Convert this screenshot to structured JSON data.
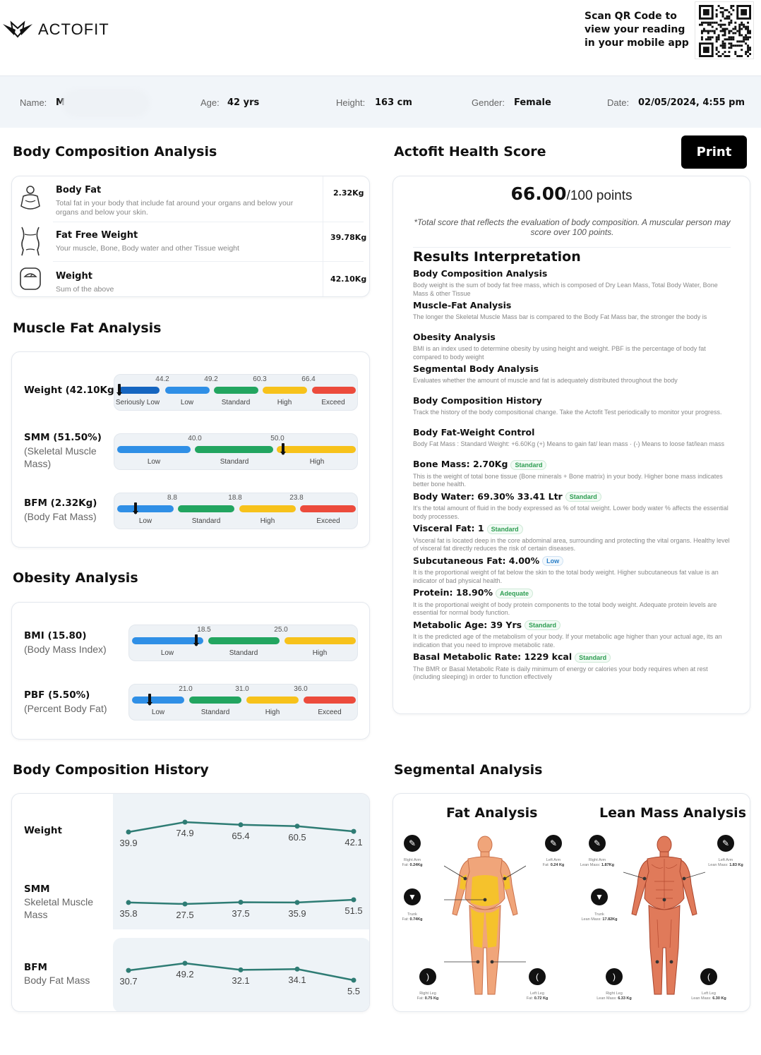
{
  "header": {
    "brand": "ACTOFIT",
    "scan_text": "Scan QR Code to view your reading in your mobile app"
  },
  "info": {
    "name_label": "Name:",
    "name_value": "M",
    "age_label": "Age:",
    "age_value": "42 yrs",
    "height_label": "Height:",
    "height_value": "163 cm",
    "gender_label": "Gender:",
    "gender_value": "Female",
    "date_label": "Date:",
    "date_value": "02/05/2024, 4:55 pm"
  },
  "body_comp": {
    "title": "Body Composition Analysis",
    "rows": [
      {
        "title": "Body Fat",
        "desc": "Total fat in your body that include fat around your organs and below your organs and below your skin.",
        "value": "2.32Kg",
        "icon": "body-fat-icon"
      },
      {
        "title": "Fat Free Weight",
        "desc": "Your muscle, Bone, Body water and other Tissue weight",
        "value": "39.78Kg",
        "icon": "fat-free-body-icon"
      },
      {
        "title": "Weight",
        "desc": "Sum of the above",
        "value": "42.10Kg",
        "icon": "scale-icon"
      }
    ]
  },
  "muscle_fat": {
    "title": "Muscle Fat Analysis",
    "rows": [
      {
        "label": "Weight (42.10Kg)",
        "sub": "",
        "ticks": [
          "44.2",
          "49.2",
          "60.3",
          "66.4"
        ],
        "zones": [
          "Seriously Low",
          "Low",
          "Standard",
          "High",
          "Exceed"
        ]
      },
      {
        "label": "SMM (51.50%)",
        "sub": "(Skeletal Muscle Mass)",
        "ticks": [
          "40.0",
          "50.0"
        ],
        "zones": [
          "Low",
          "Standard",
          "High"
        ]
      },
      {
        "label": "BFM (2.32Kg)",
        "sub": "(Body Fat Mass)",
        "ticks": [
          "8.8",
          "18.8",
          "23.8"
        ],
        "zones": [
          "Low",
          "Standard",
          "High",
          "Exceed"
        ]
      }
    ]
  },
  "obesity": {
    "title": "Obesity Analysis",
    "rows": [
      {
        "label": "BMI (15.80)",
        "sub": "(Body Mass Index)",
        "ticks": [
          "18.5",
          "25.0"
        ],
        "zones": [
          "Low",
          "Standard",
          "High"
        ]
      },
      {
        "label": "PBF (5.50%)",
        "sub": "(Percent Body Fat)",
        "ticks": [
          "21.0",
          "31.0",
          "36.0"
        ],
        "zones": [
          "Low",
          "Standard",
          "High",
          "Exceed"
        ]
      }
    ]
  },
  "health": {
    "title": "Actofit Health Score",
    "print_label": "Print",
    "score": "66.00",
    "score_suffix": "/100 points",
    "note": "*Total score that reflects the evaluation of body composition. A muscular person may score over 100 points.",
    "results_title": "Results Interpretation",
    "items": [
      {
        "title": "Body Composition Analysis",
        "badge": "",
        "desc": "Body weight is the sum of body fat free mass, which is composed of Dry Lean Mass, Total Body Water, Bone Mass & other Tissue"
      },
      {
        "title": "Muscle-Fat Analysis",
        "badge": "",
        "desc": "The longer the Skeletal Muscle Mass bar is compared to the Body Fat Mass bar, the stronger the body is"
      },
      {
        "title": "Obesity Analysis",
        "badge": "",
        "desc": "BMI is an index used to determine obesity by using height and weight. PBF is the percentage of body fat compared to body weight"
      },
      {
        "title": "Segmental Body Analysis",
        "badge": "",
        "desc": "Evaluates whether the amount of muscle and fat is adequately distributed throughout the body"
      },
      {
        "title": "Body Composition History",
        "badge": "",
        "desc": "Track the history of the body compositional change. Take the Actofit Test periodically to monitor your progress."
      },
      {
        "title": "Body Fat-Weight Control",
        "badge": "",
        "desc": "Body Fat Mass : Standard Weight: +6.60Kg (+) Means to gain fat/ lean mass · (-) Means to loose fat/lean mass"
      },
      {
        "title": "Bone Mass: 2.70Kg",
        "badge": "Standard",
        "desc": "This is the weight of total bone tissue (Bone minerals + Bone matrix) in your body. Higher bone mass indicates better bone health."
      },
      {
        "title": "Body Water: 69.30% 33.41 Ltr",
        "badge": "Standard",
        "desc": "It's the total amount of fluid in the body expressed as % of total weight. Lower body water % affects the essential body processes."
      },
      {
        "title": "Visceral Fat: 1",
        "badge": "Standard",
        "desc": "Visceral fat is located deep in the core abdominal area, surrounding and protecting the vital organs. Healthy level of visceral fat directly reduces the risk of certain diseases."
      },
      {
        "title": "Subcutaneous Fat: 4.00%",
        "badge": "Low",
        "desc": "It is the proportional weight of fat below the skin to the total body weight. Higher subcutaneous fat value is an indicator of bad physical health."
      },
      {
        "title": "Protein: 18.90%",
        "badge": "Adequate",
        "desc": "It is the proportional weight of body protein components to the total body weight. Adequate protein levels are essential for normal body function."
      },
      {
        "title": "Metabolic Age: 39 Yrs",
        "badge": "Standard",
        "desc": "It is the predicted age of the metabolism of your body. If your metabolic age higher than your actual age, its an indication that you need to improve metabolic rate."
      },
      {
        "title": "Basal Metabolic Rate: 1229 kcal",
        "badge": "Standard",
        "desc": "The BMR or Basal Metabolic Rate is daily minimum of energy or calories your body requires when at rest (including sleeping) in order to function effectively"
      }
    ]
  },
  "history": {
    "title": "Body Composition History",
    "rows": [
      {
        "label": "Weight",
        "sub": "",
        "values": [
          39.9,
          74.9,
          65.4,
          60.5,
          42.1
        ],
        "labels": [
          "39.9",
          "74.9",
          "65.4",
          "60.5",
          "42.1"
        ]
      },
      {
        "label": "SMM",
        "sub": "Skeletal Muscle Mass",
        "values": [
          35.8,
          27.5,
          37.5,
          35.9,
          51.5
        ],
        "labels": [
          "35.8",
          "27.5",
          "37.5",
          "35.9",
          "51.5"
        ]
      },
      {
        "label": "BFM",
        "sub": "Body Fat Mass",
        "values": [
          30.7,
          49.2,
          32.1,
          34.1,
          5.5
        ],
        "labels": [
          "30.7",
          "49.2",
          "32.1",
          "34.1",
          "5.5"
        ]
      }
    ]
  },
  "segmental": {
    "title": "Segmental Analysis",
    "fat_title": "Fat Analysis",
    "lean_title": "Lean Mass Analysis",
    "fat": {
      "right_arm": [
        "Right Arm",
        "Fat: ",
        "0.24Kg"
      ],
      "left_arm": [
        "Left Arm",
        "Fat: ",
        "0.24 Kg"
      ],
      "trunk": [
        "Trunk",
        "Fat: ",
        "0.74Kg"
      ],
      "right_leg": [
        "Right Leg",
        "Fat: ",
        "0.75 Kg"
      ],
      "left_leg": [
        "Left Leg",
        "Fat: ",
        "0.72 Kg"
      ]
    },
    "lean": {
      "right_arm": [
        "Right Arm",
        "Lean Mass: ",
        "1.87Kg"
      ],
      "left_arm": [
        "Left Arm",
        "Lean Mass: ",
        "1.83 Kg"
      ],
      "trunk": [
        "Trunk",
        "Lean Mass: ",
        "17.82Kg"
      ],
      "right_leg": [
        "Right Leg",
        "Lean Mass: ",
        "6.33 Kg"
      ],
      "left_leg": [
        "Left Leg",
        "Lean Mass: ",
        "6.30 Kg"
      ]
    }
  },
  "colors": {
    "blue": "#2f8fe6",
    "dark_blue": "#1565c0",
    "green": "#22a560",
    "yellow": "#f7c21b",
    "red": "#ec4b3c",
    "history_line": "#2e7c74"
  }
}
